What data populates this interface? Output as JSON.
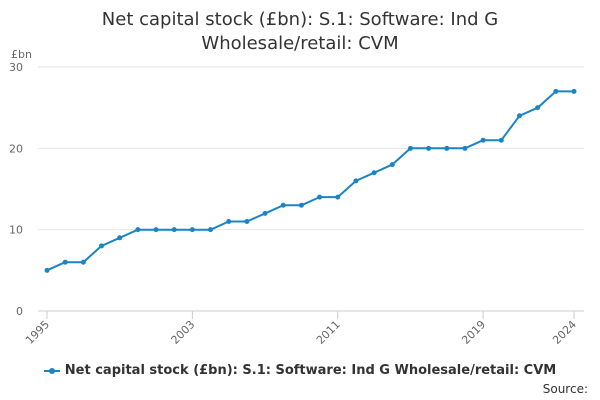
{
  "colors": {
    "series": "#1b84c7",
    "grid": "#e6e6e6",
    "axis": "#cccccc",
    "text": "#333333",
    "label": "#666666"
  },
  "chart_data": {
    "type": "line",
    "title_lines": [
      "Net capital stock (£bn): S.1: Software: Ind G",
      "Wholesale/retail: CVM"
    ],
    "ylabel": "£bn",
    "xlabel": "",
    "ylim": [
      0,
      30
    ],
    "yticks": [
      0,
      10,
      20,
      30
    ],
    "xlim": [
      1995,
      2024
    ],
    "xticks": [
      1995,
      2003,
      2011,
      2019,
      2024
    ],
    "grid": true,
    "legend_position": "bottom",
    "series": [
      {
        "name": "Net capital stock (£bn): S.1: Software: Ind G Wholesale/retail: CVM",
        "x": [
          1995,
          1996,
          1997,
          1998,
          1999,
          2000,
          2001,
          2002,
          2003,
          2004,
          2005,
          2006,
          2007,
          2008,
          2009,
          2010,
          2011,
          2012,
          2013,
          2014,
          2015,
          2016,
          2017,
          2018,
          2019,
          2020,
          2021,
          2022,
          2023,
          2024
        ],
        "values": [
          5,
          6,
          6,
          8,
          9,
          10,
          10,
          10,
          10,
          10,
          11,
          11,
          12,
          13,
          13,
          14,
          14,
          16,
          17,
          18,
          20,
          20,
          20,
          20,
          21,
          21,
          24,
          25,
          27,
          27
        ]
      }
    ]
  },
  "footer": {
    "source_label": "Source:"
  }
}
